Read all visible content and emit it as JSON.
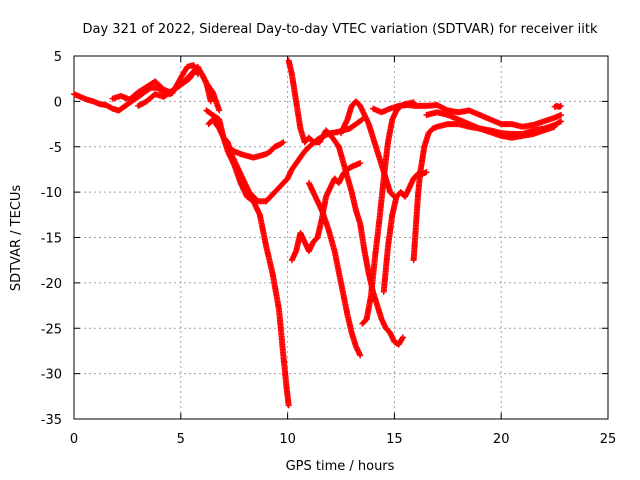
{
  "chart_data": {
    "type": "scatter",
    "title": "Day 321 of 2022, Sidereal Day-to-day VTEC variation (SDTVAR) for receiver iitk",
    "xlabel": "GPS time / hours",
    "ylabel": "SDTVAR / TECUs",
    "xlim": [
      0,
      25
    ],
    "ylim": [
      -35,
      5
    ],
    "xticks": [
      0,
      5,
      10,
      15,
      20,
      25
    ],
    "yticks": [
      -35,
      -30,
      -25,
      -20,
      -15,
      -10,
      -5,
      0,
      5
    ],
    "grid": true,
    "marker": "+",
    "marker_color": "#ff0000",
    "series": [
      {
        "x": [
          0.0,
          0.3,
          0.6,
          0.9,
          1.2,
          1.5,
          1.8,
          2.1,
          2.4,
          2.7,
          3.0,
          3.3,
          3.6,
          3.9,
          4.2,
          4.5,
          4.8,
          5.1,
          5.4,
          5.7,
          6.0,
          6.2,
          6.4
        ],
        "y": [
          0.8,
          0.5,
          0.2,
          0.0,
          -0.3,
          -0.4,
          -0.8,
          -1.0,
          -0.5,
          0.0,
          0.5,
          1.0,
          1.5,
          1.5,
          1.0,
          0.8,
          1.5,
          2.0,
          2.5,
          3.5,
          3.0,
          2.0,
          0.0
        ]
      },
      {
        "x": [
          1.8,
          2.2,
          2.6,
          3.0,
          3.4,
          3.8,
          4.2,
          4.6,
          5.0,
          5.3,
          5.6,
          5.8
        ],
        "y": [
          0.3,
          0.6,
          0.2,
          1.0,
          1.6,
          2.2,
          1.3,
          0.9,
          2.6,
          3.8,
          4.0,
          3.0
        ]
      },
      {
        "x": [
          3.0,
          3.4,
          3.8,
          4.2,
          4.6,
          5.0,
          5.4,
          5.8,
          6.2,
          6.5,
          6.8
        ],
        "y": [
          -0.5,
          0.0,
          0.8,
          0.5,
          1.2,
          1.8,
          2.8,
          3.8,
          2.0,
          1.0,
          -1.0
        ]
      },
      {
        "x": [
          6.2,
          6.5,
          6.8,
          7.0,
          7.2,
          7.5,
          7.8,
          8.1,
          8.4,
          8.7,
          9.0,
          9.3,
          9.6,
          9.8,
          9.95,
          10.05
        ],
        "y": [
          -1.0,
          -1.5,
          -2.0,
          -4.0,
          -5.5,
          -7.0,
          -9.0,
          -10.5,
          -11.0,
          -12.5,
          -16.0,
          -19.0,
          -23.0,
          -28.0,
          -31.5,
          -33.5
        ]
      },
      {
        "x": [
          7.0,
          7.2,
          7.5,
          7.8,
          8.1,
          8.4,
          8.7,
          9.0,
          9.2,
          9.4,
          9.6,
          9.8
        ],
        "y": [
          -4.0,
          -5.0,
          -5.5,
          -5.8,
          -6.0,
          -6.2,
          -6.0,
          -5.8,
          -5.5,
          -5.0,
          -4.8,
          -4.5
        ]
      },
      {
        "x": [
          6.3,
          6.5,
          6.8,
          7.0,
          7.2,
          7.4,
          7.6,
          7.8,
          8.0,
          8.2,
          8.4,
          8.6,
          8.8,
          9.0,
          9.2,
          9.4,
          9.6,
          9.8,
          10.0,
          10.2,
          10.5,
          10.8,
          11.1,
          11.4,
          11.7,
          12.0,
          12.3
        ],
        "y": [
          -2.5,
          -2.0,
          -3.0,
          -4.0,
          -4.5,
          -6.0,
          -7.0,
          -8.0,
          -9.0,
          -10.0,
          -10.5,
          -11.0,
          -11.0,
          -11.0,
          -10.5,
          -10.0,
          -9.5,
          -9.0,
          -8.5,
          -7.5,
          -6.5,
          -5.5,
          -4.8,
          -4.2,
          -3.8,
          -3.5,
          -3.4
        ]
      },
      {
        "x": [
          12.3,
          12.6,
          12.9,
          13.2,
          13.5
        ],
        "y": [
          -3.4,
          -3.2,
          -3.0,
          -2.5,
          -2.0
        ]
      },
      {
        "x": [
          10.05,
          10.2,
          10.4,
          10.6,
          10.8,
          11.0,
          11.2,
          11.5,
          11.8,
          12.1,
          12.4,
          12.7,
          13.0,
          13.2,
          13.4,
          13.6,
          13.8,
          14.0,
          14.2,
          14.4,
          14.6,
          14.8,
          15.0,
          15.2,
          15.4
        ],
        "y": [
          4.5,
          3.0,
          0.0,
          -3.0,
          -4.5,
          -4.0,
          -4.5,
          -4.5,
          -3.2,
          -4.0,
          -5.0,
          -7.5,
          -10.0,
          -12.0,
          -13.5,
          -16.5,
          -19.0,
          -21.0,
          -22.5,
          -24.0,
          -25.0,
          -25.5,
          -26.5,
          -26.8,
          -26.0
        ]
      },
      {
        "x": [
          10.2,
          10.4,
          10.6,
          10.8,
          11.0,
          11.2,
          11.4,
          11.6,
          11.8,
          12.0,
          12.2,
          12.4,
          12.6,
          12.8,
          13.0,
          13.2,
          13.4
        ],
        "y": [
          -17.5,
          -16.5,
          -14.5,
          -15.5,
          -16.5,
          -15.5,
          -15.0,
          -13.0,
          -10.5,
          -9.5,
          -8.5,
          -9.0,
          -8.0,
          -7.5,
          -7.2,
          -7.0,
          -6.8
        ]
      },
      {
        "x": [
          11.0,
          11.3,
          11.6,
          11.9,
          12.2,
          12.5,
          12.8,
          13.0,
          13.2,
          13.4
        ],
        "y": [
          -9.0,
          -10.5,
          -12.0,
          -14.0,
          -16.5,
          -20.0,
          -23.5,
          -25.5,
          -27.0,
          -28.0
        ]
      },
      {
        "x": [
          12.5,
          12.8,
          13.0,
          13.2,
          13.4,
          13.6,
          13.8,
          14.0,
          14.2,
          14.4,
          14.6,
          14.8,
          15.0
        ],
        "y": [
          -3.5,
          -2.0,
          -0.5,
          0.0,
          -0.5,
          -1.5,
          -2.5,
          -4.0,
          -5.5,
          -7.0,
          -8.5,
          -10.0,
          -10.5
        ]
      },
      {
        "x": [
          13.5,
          13.7,
          13.9,
          14.1,
          14.3,
          14.5,
          14.7,
          14.9,
          15.1,
          15.3,
          15.5,
          15.7,
          15.9
        ],
        "y": [
          -24.5,
          -24.0,
          -21.5,
          -17.0,
          -13.0,
          -8.5,
          -4.5,
          -2.0,
          -1.0,
          -0.5,
          -0.3,
          -0.2,
          -0.1
        ]
      },
      {
        "x": [
          14.5,
          14.7,
          14.9,
          15.1,
          15.3,
          15.5,
          15.7,
          15.9,
          16.1,
          16.3,
          16.5
        ],
        "y": [
          -21.0,
          -16.0,
          -12.5,
          -10.5,
          -10.0,
          -10.5,
          -9.5,
          -8.5,
          -8.0,
          -8.0,
          -7.8
        ]
      },
      {
        "x": [
          14.0,
          14.4,
          14.8,
          15.2,
          15.6,
          16.0,
          16.5,
          17.0,
          17.5,
          18.0,
          18.5,
          19.0,
          19.5,
          20.0,
          20.5,
          21.0,
          21.5,
          22.0,
          22.5,
          22.8
        ],
        "y": [
          -0.8,
          -1.2,
          -0.8,
          -0.5,
          -0.4,
          -0.5,
          -0.5,
          -0.4,
          -1.0,
          -1.2,
          -1.0,
          -1.5,
          -2.0,
          -2.5,
          -2.5,
          -2.8,
          -2.6,
          -2.2,
          -1.8,
          -1.5
        ]
      },
      {
        "x": [
          15.9,
          16.0,
          16.1,
          16.2,
          16.3,
          16.4,
          16.6,
          16.8,
          17.0,
          17.5,
          18.0,
          18.5,
          19.0,
          19.5,
          20.0,
          20.5,
          21.0,
          21.5,
          22.0,
          22.5,
          22.8
        ],
        "y": [
          -17.5,
          -14.0,
          -10.5,
          -8.0,
          -6.5,
          -5.0,
          -3.5,
          -3.0,
          -2.8,
          -2.5,
          -2.5,
          -2.8,
          -3.0,
          -3.2,
          -3.5,
          -3.6,
          -3.6,
          -3.2,
          -3.0,
          -2.6,
          -2.2
        ]
      },
      {
        "x": [
          16.5,
          17.0,
          17.5,
          18.0,
          18.5,
          19.0,
          19.5,
          20.0,
          20.5,
          21.0,
          21.5,
          22.0,
          22.5
        ],
        "y": [
          -1.5,
          -1.2,
          -1.5,
          -2.0,
          -2.5,
          -3.0,
          -3.4,
          -3.8,
          -4.0,
          -3.8,
          -3.6,
          -3.2,
          -2.8
        ]
      },
      {
        "x": [
          22.5,
          22.6,
          22.7,
          22.8
        ],
        "y": [
          -0.6,
          -0.5,
          -0.6,
          -0.5
        ]
      }
    ]
  }
}
